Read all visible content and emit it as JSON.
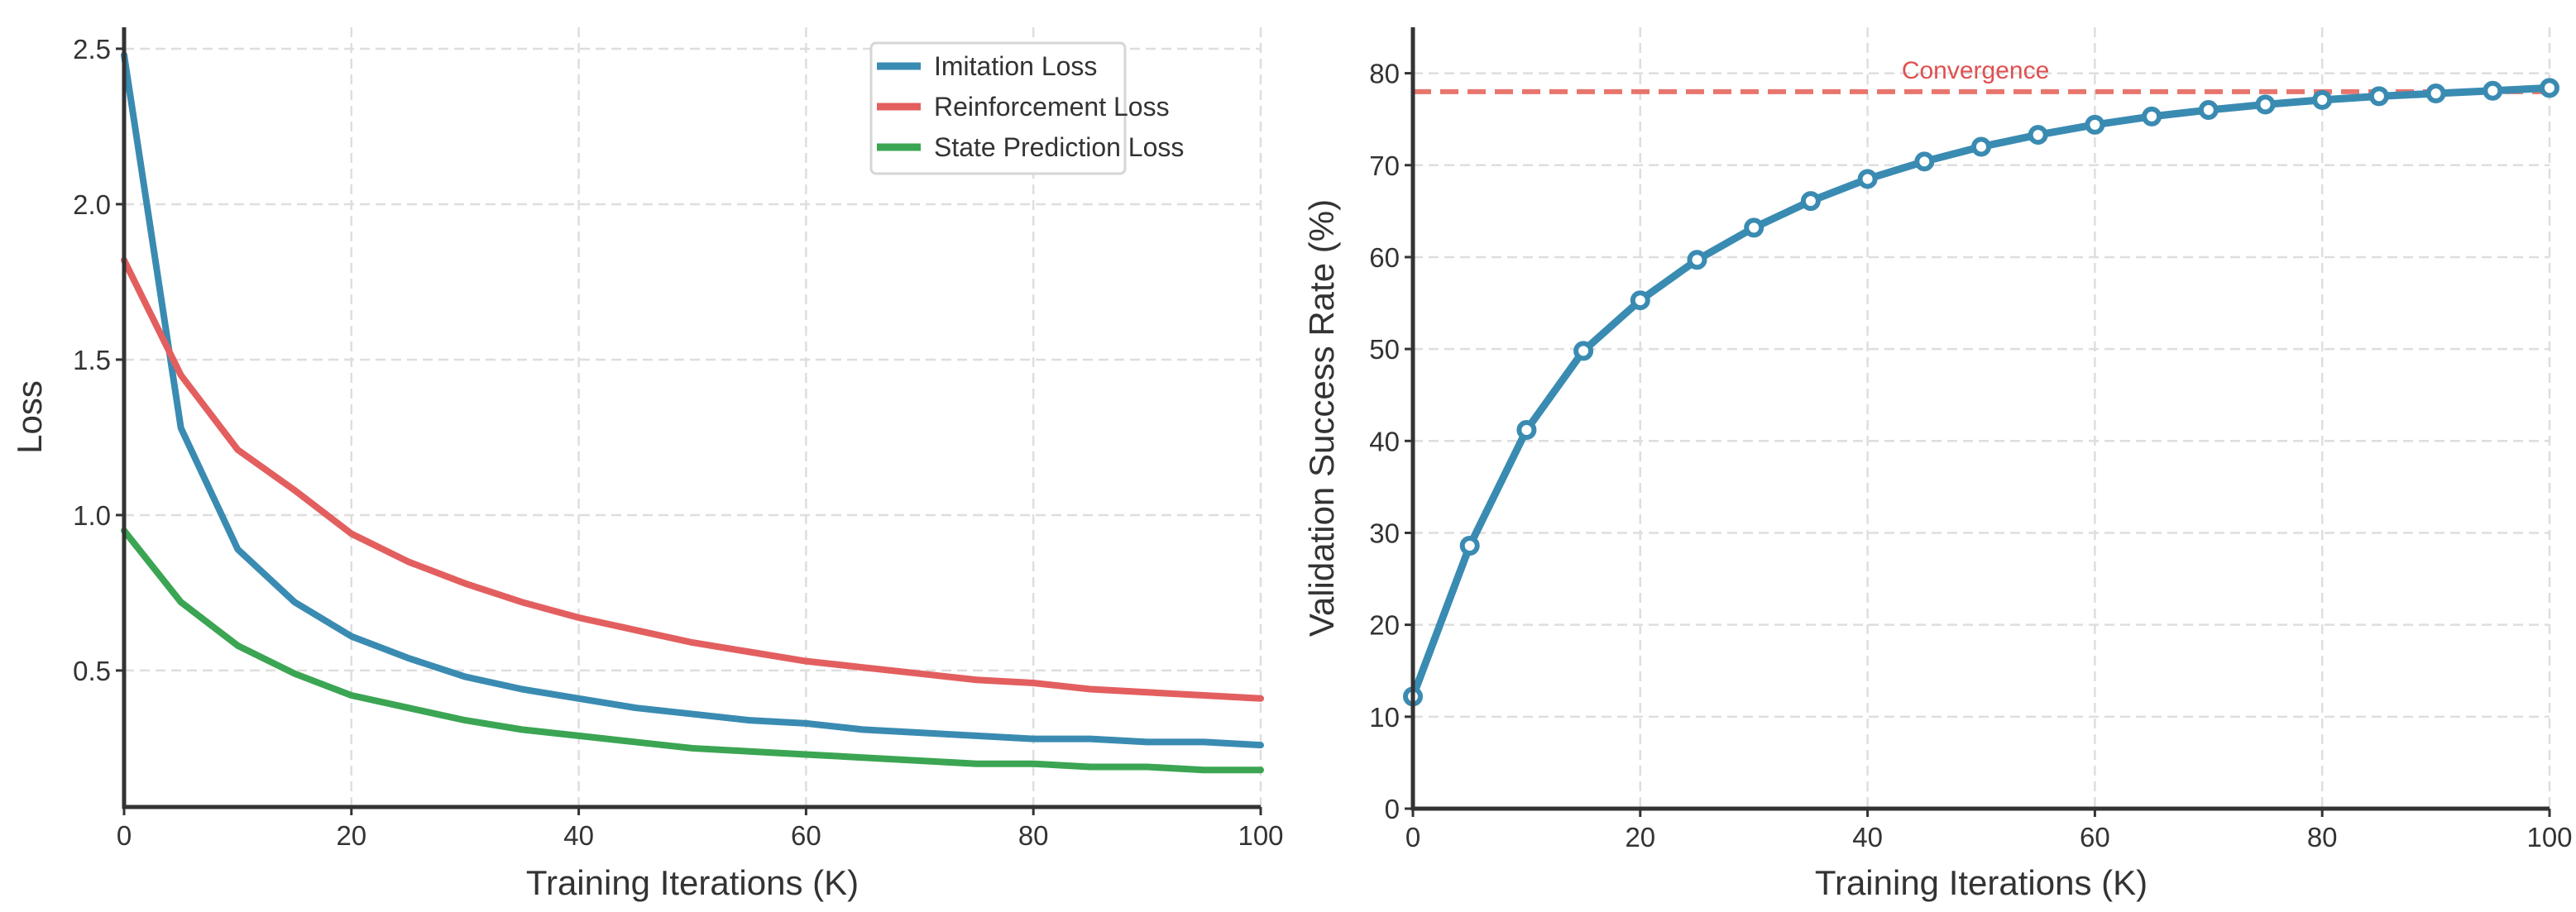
{
  "chart_data": [
    {
      "type": "line",
      "title": "",
      "xlabel": "Training Iterations (K)",
      "ylabel": "Loss",
      "xlim": [
        0,
        100
      ],
      "ylim": [
        0.061,
        2.569
      ],
      "xticks": [
        "0",
        "20",
        "40",
        "60",
        "80",
        "100"
      ],
      "xtick_values": [
        0,
        20,
        40,
        60,
        80,
        100
      ],
      "yticks": [
        "0.5",
        "1.0",
        "1.5",
        "2.0",
        "2.5"
      ],
      "ytick_values": [
        0.5,
        1.0,
        1.5,
        2.0,
        2.5
      ],
      "grid": true,
      "legend_position": "top-right",
      "x": [
        0,
        5,
        10,
        15,
        20,
        25,
        30,
        35,
        40,
        45,
        50,
        55,
        60,
        65,
        70,
        75,
        80,
        85,
        90,
        95,
        100
      ],
      "series": [
        {
          "name": "Imitation Loss",
          "color": "#3a8bb2",
          "values": [
            2.48,
            1.28,
            0.89,
            0.72,
            0.61,
            0.54,
            0.48,
            0.44,
            0.41,
            0.38,
            0.36,
            0.34,
            0.33,
            0.31,
            0.3,
            0.29,
            0.28,
            0.28,
            0.27,
            0.27,
            0.26
          ]
        },
        {
          "name": "Reinforcement Loss",
          "color": "#e35f5f",
          "values": [
            1.82,
            1.45,
            1.21,
            1.08,
            0.94,
            0.85,
            0.78,
            0.72,
            0.67,
            0.63,
            0.59,
            0.56,
            0.53,
            0.51,
            0.49,
            0.47,
            0.46,
            0.44,
            0.43,
            0.42,
            0.41
          ]
        },
        {
          "name": "State Prediction Loss",
          "color": "#3ba553",
          "values": [
            0.95,
            0.72,
            0.58,
            0.49,
            0.42,
            0.38,
            0.34,
            0.31,
            0.29,
            0.27,
            0.25,
            0.24,
            0.23,
            0.22,
            0.21,
            0.2,
            0.2,
            0.19,
            0.19,
            0.18,
            0.18
          ]
        }
      ]
    },
    {
      "type": "line",
      "title": "",
      "xlabel": "Training Iterations (K)",
      "ylabel": "Validation Success Rate (%)",
      "xlim": [
        0,
        100
      ],
      "ylim": [
        0,
        85
      ],
      "xticks": [
        "0",
        "20",
        "40",
        "60",
        "80",
        "100"
      ],
      "xtick_values": [
        0,
        20,
        40,
        60,
        80,
        100
      ],
      "yticks": [
        "0",
        "10",
        "20",
        "30",
        "40",
        "50",
        "60",
        "70",
        "80"
      ],
      "ytick_values": [
        0,
        10,
        20,
        30,
        40,
        50,
        60,
        70,
        80
      ],
      "grid": true,
      "x": [
        0,
        5,
        10,
        15,
        20,
        25,
        30,
        35,
        40,
        45,
        50,
        55,
        60,
        65,
        70,
        75,
        80,
        85,
        90,
        95,
        100
      ],
      "series": [
        {
          "name": "Validation Success Rate",
          "color": "#3a8bb2",
          "markers": true,
          "values": [
            12.2,
            28.6,
            41.2,
            49.8,
            55.3,
            59.7,
            63.2,
            66.1,
            68.5,
            70.4,
            72.0,
            73.3,
            74.4,
            75.3,
            76.0,
            76.6,
            77.1,
            77.5,
            77.8,
            78.1,
            78.4
          ]
        }
      ],
      "reference_line": {
        "label": "Convergence",
        "value": 78,
        "color": "#e8756d",
        "label_color": "#e05050"
      }
    }
  ]
}
